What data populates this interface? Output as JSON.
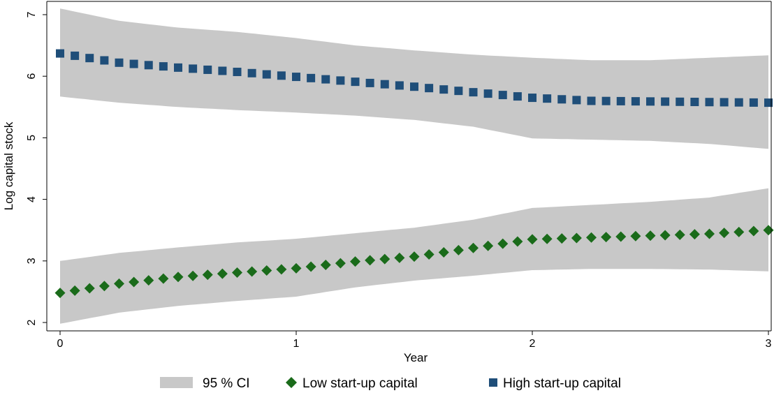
{
  "chart_data": {
    "type": "scatter",
    "title": "",
    "xlabel": "Year",
    "ylabel": "Log capital stock",
    "xlim": [
      0,
      3
    ],
    "ylim": [
      2,
      7
    ],
    "x_ticks": [
      0,
      1,
      2,
      3
    ],
    "y_ticks": [
      2,
      3,
      4,
      5,
      6,
      7
    ],
    "x_tick_labels": [
      "0",
      "1",
      "2",
      "3"
    ],
    "y_tick_labels": [
      "2",
      "3",
      "4",
      "5",
      "6",
      "7"
    ],
    "grid": false,
    "legend_position": "bottom",
    "ci_label": "95 % CI",
    "ci_color": "#c8c8c8",
    "series": [
      {
        "name": "Low start-up capital",
        "marker": "diamond",
        "color": "#1a6b1a",
        "x_range": [
          0,
          3
        ],
        "points": 49,
        "anchor_x": [
          0,
          0.25,
          0.5,
          0.75,
          1.0,
          1.25,
          1.5,
          1.75,
          2.0,
          2.25,
          2.5,
          2.75,
          3.0
        ],
        "anchor_y": [
          2.48,
          2.63,
          2.74,
          2.81,
          2.88,
          2.99,
          3.07,
          3.21,
          3.35,
          3.38,
          3.41,
          3.44,
          3.5
        ],
        "ci_lower": [
          1.98,
          2.16,
          2.27,
          2.35,
          2.42,
          2.57,
          2.68,
          2.76,
          2.85,
          2.87,
          2.87,
          2.86,
          2.83
        ],
        "ci_upper": [
          3.0,
          3.13,
          3.22,
          3.3,
          3.36,
          3.45,
          3.54,
          3.67,
          3.86,
          3.91,
          3.96,
          4.03,
          4.18
        ]
      },
      {
        "name": "High start-up capital",
        "marker": "square",
        "color": "#1f4e79",
        "x_range": [
          0,
          3
        ],
        "points": 49,
        "anchor_x": [
          0,
          0.25,
          0.5,
          0.75,
          1.0,
          1.25,
          1.5,
          1.75,
          2.0,
          2.25,
          2.5,
          2.75,
          3.0
        ],
        "anchor_y": [
          6.37,
          6.22,
          6.14,
          6.07,
          5.99,
          5.91,
          5.83,
          5.74,
          5.65,
          5.6,
          5.59,
          5.58,
          5.57
        ],
        "ci_lower": [
          5.67,
          5.57,
          5.5,
          5.45,
          5.41,
          5.36,
          5.29,
          5.18,
          4.99,
          4.97,
          4.95,
          4.9,
          4.82
        ],
        "ci_upper": [
          7.1,
          6.9,
          6.79,
          6.72,
          6.62,
          6.5,
          6.42,
          6.35,
          6.3,
          6.26,
          6.26,
          6.3,
          6.34
        ]
      }
    ]
  }
}
